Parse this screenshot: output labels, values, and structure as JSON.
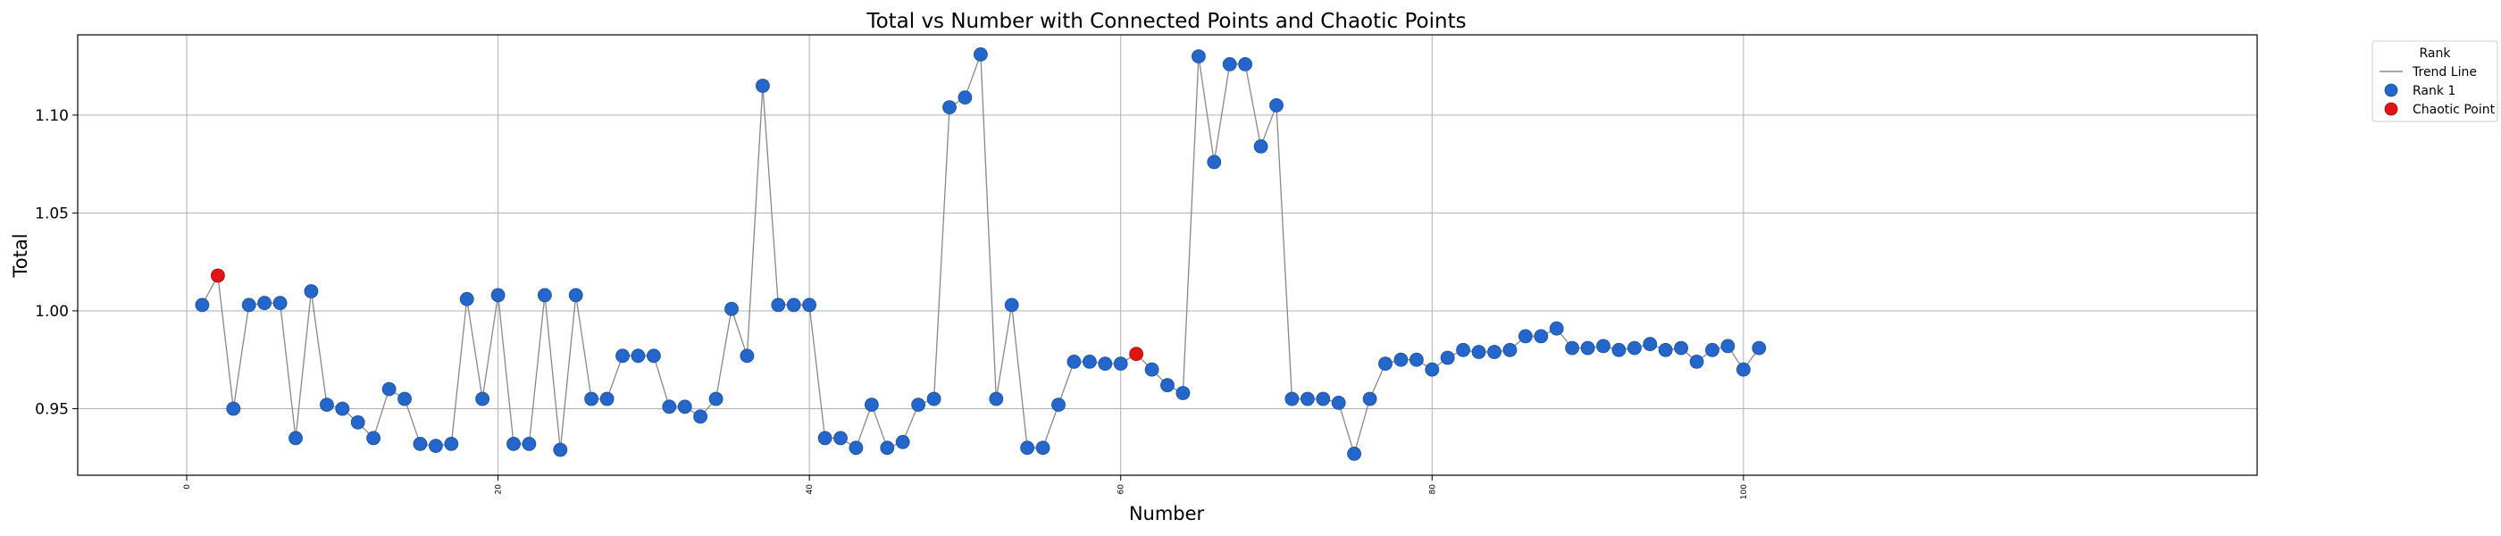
{
  "chart_data": {
    "type": "scatter",
    "title": "Total vs Number with Connected Points and Chaotic Points",
    "xlabel": "Number",
    "ylabel": "Total",
    "xlim": [
      -7,
      133
    ],
    "ylim": [
      0.916,
      1.141
    ],
    "x_ticks": [
      0,
      20,
      40,
      60,
      80,
      100
    ],
    "y_ticks": [
      0.95,
      1.0,
      1.05,
      1.1
    ],
    "y_tick_labels": [
      "0.95",
      "1.00",
      "1.05",
      "1.10"
    ],
    "grid": true,
    "legend": {
      "title": "Rank",
      "placement": "outside-top-right",
      "entries": [
        {
          "label": "Trend Line",
          "kind": "line",
          "color": "#888888"
        },
        {
          "label": "Rank 1",
          "kind": "marker",
          "color": "#2466c9"
        },
        {
          "label": "Chaotic Point",
          "kind": "marker",
          "color": "#e01414"
        }
      ]
    },
    "colors": {
      "trend": "#888888",
      "rank1": "#2466c9",
      "chaotic": "#e01414"
    },
    "series": [
      {
        "name": "Rank 1",
        "points": [
          [
            1,
            1.003
          ],
          [
            2,
            1.018
          ],
          [
            3,
            0.95
          ],
          [
            4,
            1.003
          ],
          [
            5,
            1.004
          ],
          [
            6,
            1.004
          ],
          [
            7,
            0.935
          ],
          [
            8,
            1.01
          ],
          [
            9,
            0.952
          ],
          [
            10,
            0.95
          ],
          [
            11,
            0.943
          ],
          [
            12,
            0.935
          ],
          [
            13,
            0.96
          ],
          [
            14,
            0.955
          ],
          [
            15,
            0.932
          ],
          [
            16,
            0.931
          ],
          [
            17,
            0.932
          ],
          [
            18,
            1.006
          ],
          [
            19,
            0.955
          ],
          [
            20,
            1.008
          ],
          [
            21,
            0.932
          ],
          [
            22,
            0.932
          ],
          [
            23,
            1.008
          ],
          [
            24,
            0.929
          ],
          [
            25,
            1.008
          ],
          [
            26,
            0.955
          ],
          [
            27,
            0.955
          ],
          [
            28,
            0.977
          ],
          [
            29,
            0.977
          ],
          [
            30,
            0.977
          ],
          [
            31,
            0.951
          ],
          [
            32,
            0.951
          ],
          [
            33,
            0.946
          ],
          [
            34,
            0.955
          ],
          [
            35,
            1.001
          ],
          [
            36,
            0.977
          ],
          [
            37,
            1.115
          ],
          [
            38,
            1.003
          ],
          [
            39,
            1.003
          ],
          [
            40,
            1.003
          ],
          [
            41,
            0.935
          ],
          [
            42,
            0.935
          ],
          [
            43,
            0.93
          ],
          [
            44,
            0.952
          ],
          [
            45,
            0.93
          ],
          [
            46,
            0.933
          ],
          [
            47,
            0.952
          ],
          [
            48,
            0.955
          ],
          [
            49,
            1.104
          ],
          [
            50,
            1.109
          ],
          [
            51,
            1.131
          ],
          [
            52,
            0.955
          ],
          [
            53,
            1.003
          ],
          [
            54,
            0.93
          ],
          [
            55,
            0.93
          ],
          [
            56,
            0.952
          ],
          [
            57,
            0.974
          ],
          [
            58,
            0.974
          ],
          [
            59,
            0.973
          ],
          [
            60,
            0.973
          ],
          [
            61,
            0.978
          ],
          [
            62,
            0.97
          ],
          [
            63,
            0.962
          ],
          [
            64,
            0.958
          ],
          [
            65,
            1.13
          ],
          [
            66,
            1.076
          ],
          [
            67,
            1.126
          ],
          [
            68,
            1.126
          ],
          [
            69,
            1.084
          ],
          [
            70,
            1.105
          ],
          [
            71,
            0.955
          ],
          [
            72,
            0.955
          ],
          [
            73,
            0.955
          ],
          [
            74,
            0.953
          ],
          [
            75,
            0.927
          ],
          [
            76,
            0.955
          ],
          [
            77,
            0.973
          ],
          [
            78,
            0.975
          ],
          [
            79,
            0.975
          ],
          [
            80,
            0.97
          ],
          [
            81,
            0.976
          ],
          [
            82,
            0.98
          ],
          [
            83,
            0.979
          ],
          [
            84,
            0.979
          ],
          [
            85,
            0.98
          ],
          [
            86,
            0.987
          ],
          [
            87,
            0.987
          ],
          [
            88,
            0.991
          ],
          [
            89,
            0.981
          ],
          [
            90,
            0.981
          ],
          [
            91,
            0.982
          ],
          [
            92,
            0.98
          ],
          [
            93,
            0.981
          ],
          [
            94,
            0.983
          ],
          [
            95,
            0.98
          ],
          [
            96,
            0.981
          ],
          [
            97,
            0.974
          ],
          [
            98,
            0.98
          ],
          [
            99,
            0.982
          ],
          [
            100,
            0.97
          ],
          [
            101,
            0.981
          ]
        ]
      }
    ],
    "chaotic_points": [
      [
        2,
        1.018
      ],
      [
        61,
        0.978
      ]
    ]
  }
}
